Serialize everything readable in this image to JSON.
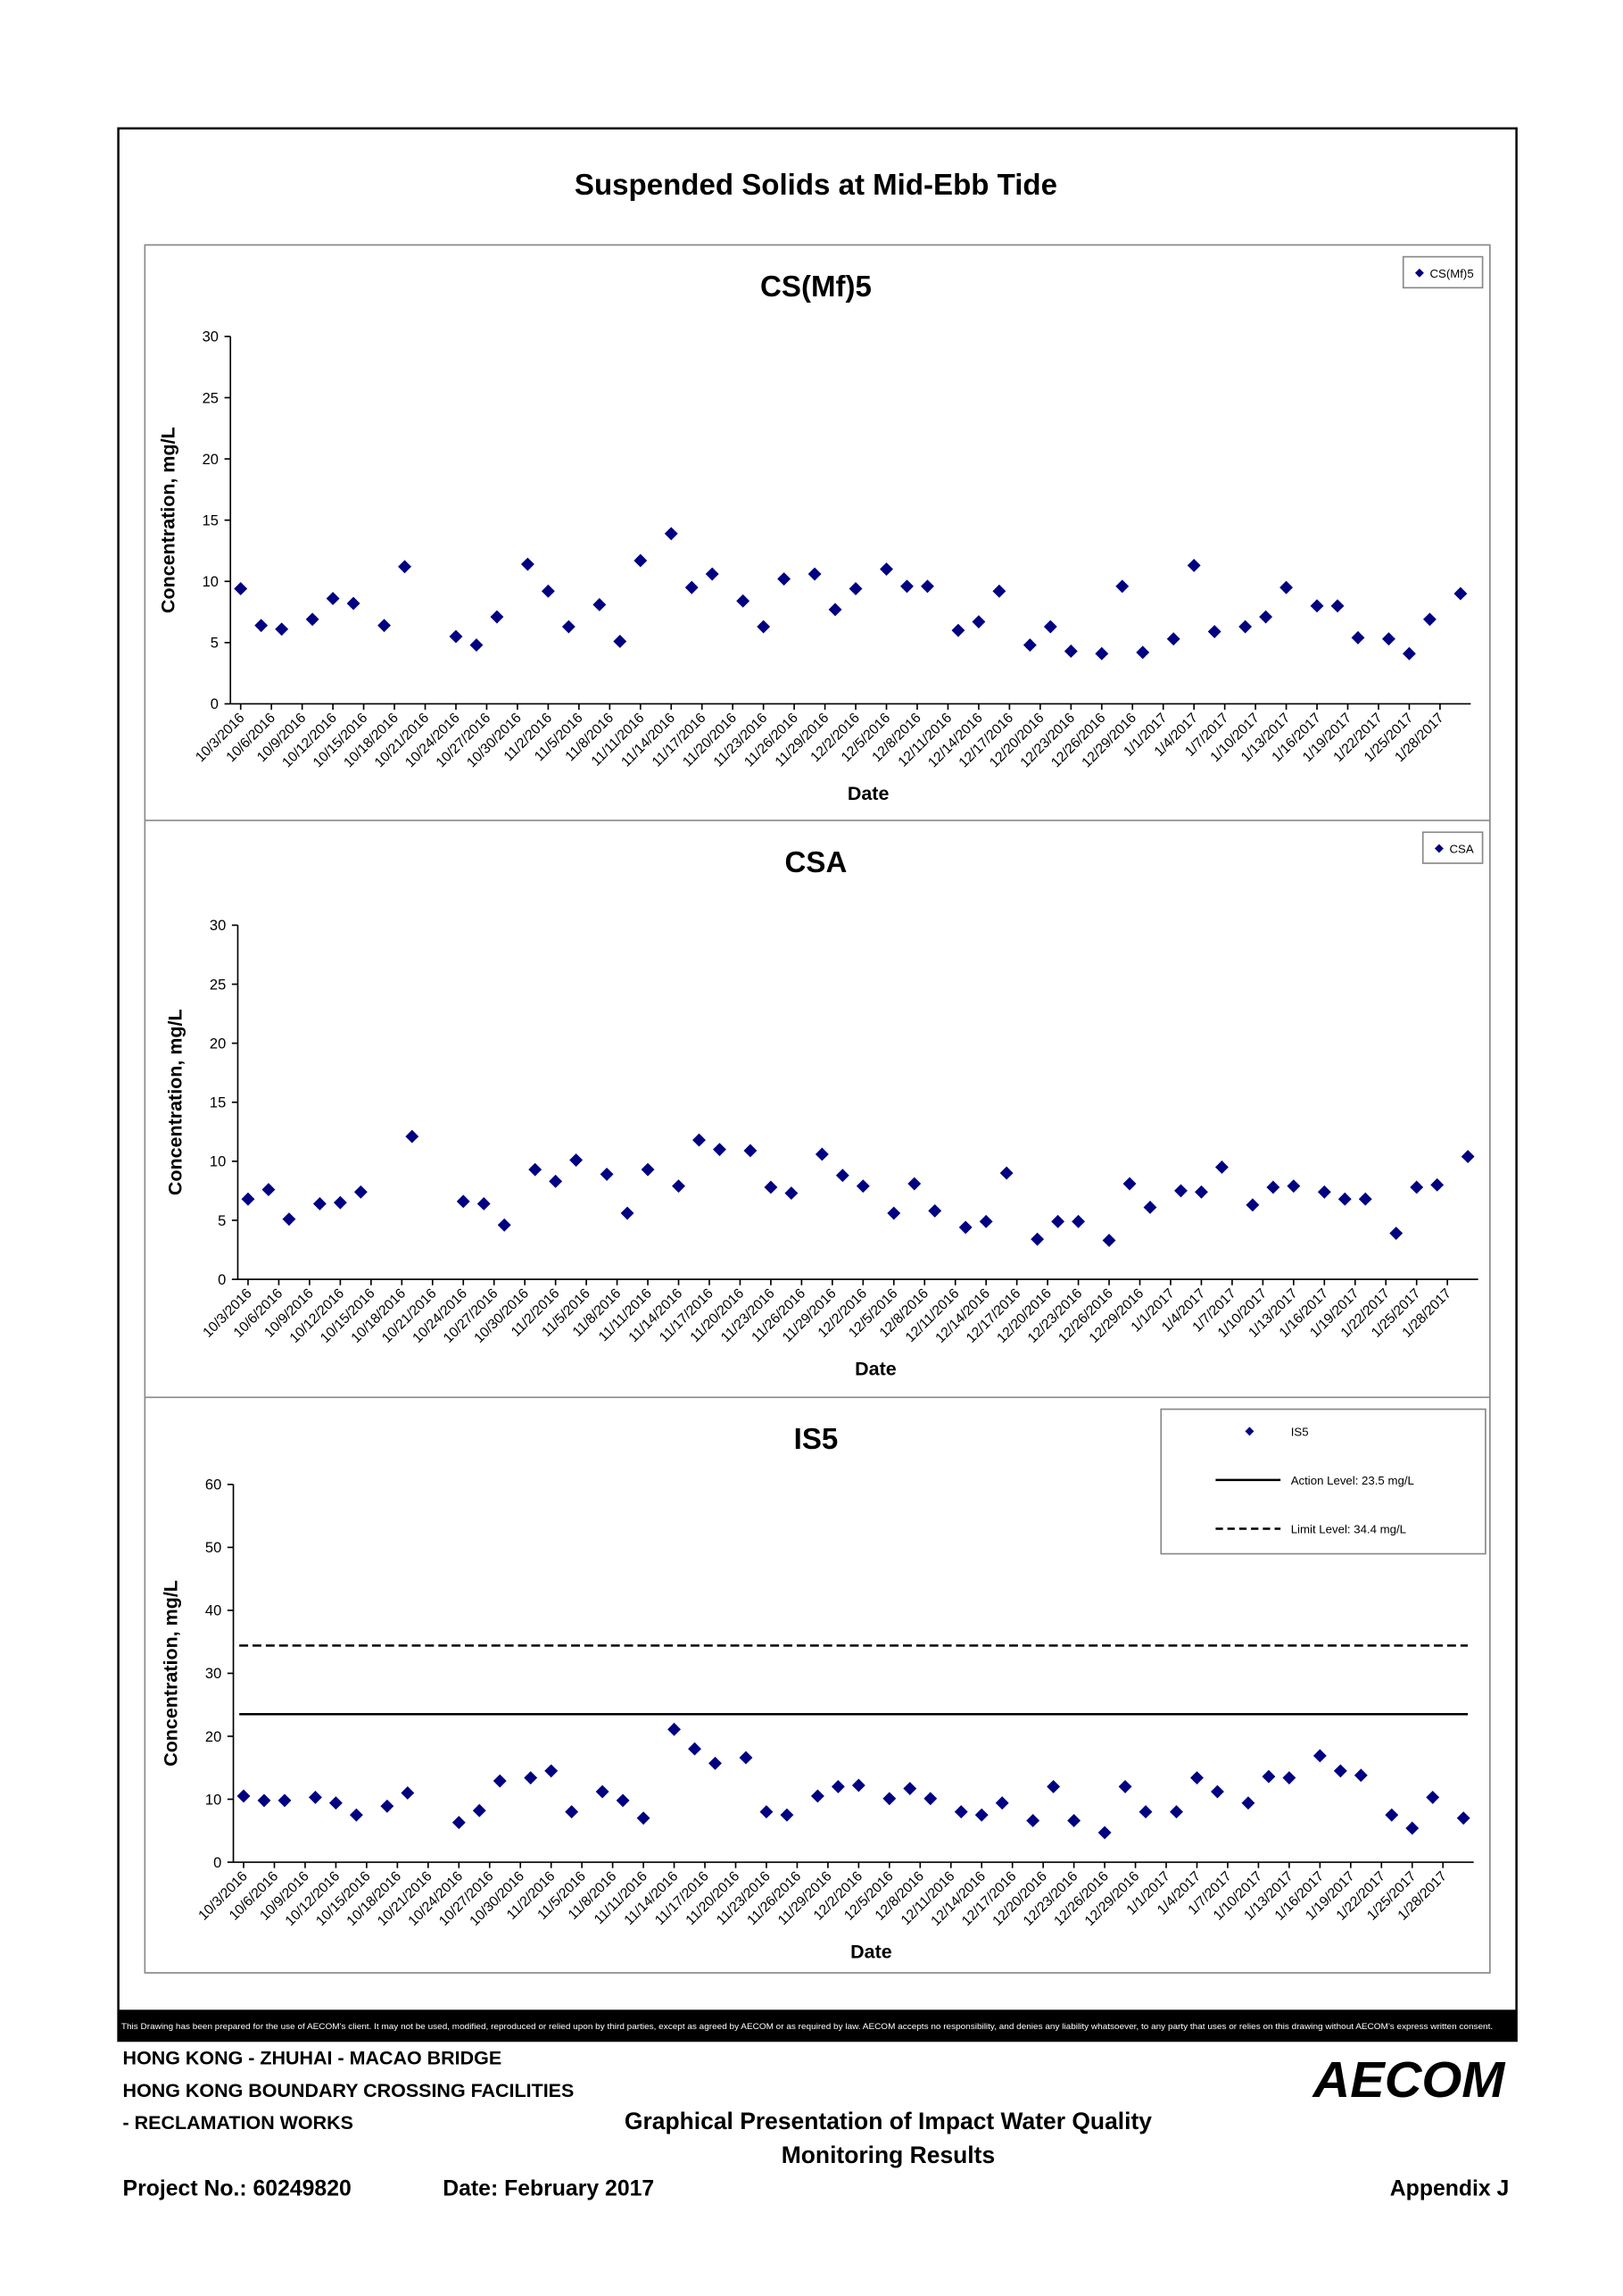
{
  "title": "Suspended Solids at Mid-Ebb Tide",
  "disclaimer": "This Drawing has been prepared for the use of AECOM's client. It may not be used, modified, reproduced or relied upon by third parties, except as agreed by AECOM or as required by law. AECOM accepts no responsibility, and denies any liability whatsoever, to any party that uses or relies on this drawing without AECOM's express written consent.",
  "footer": {
    "project_lines": [
      "HONG KONG - ZHUHAI - MACAO BRIDGE",
      "HONG KONG BOUNDARY CROSSING FACILITIES",
      "- RECLAMATION WORKS"
    ],
    "drawing_title": [
      "Graphical Presentation of Impact Water Quality",
      "Monitoring Results"
    ],
    "project_no": "Project No.: 60249820",
    "date": "Date: February 2017",
    "appendix": "Appendix J",
    "logo": "AECOM"
  },
  "chart_data": [
    {
      "type": "scatter",
      "title": "CS(Mf)5",
      "xlabel": "Date",
      "ylabel": "Concentration, mg/L",
      "legend": "upper right",
      "grid": false,
      "xlim": [
        "10/2/2016",
        "1/31/2017"
      ],
      "ylim": [
        0,
        30
      ],
      "yticks": [
        0,
        5,
        10,
        15,
        20,
        25,
        30
      ],
      "xticks": [
        "10/3/2016",
        "10/6/2016",
        "10/9/2016",
        "10/12/2016",
        "10/15/2016",
        "10/18/2016",
        "10/21/2016",
        "10/24/2016",
        "10/27/2016",
        "10/30/2016",
        "11/2/2016",
        "11/5/2016",
        "11/8/2016",
        "11/11/2016",
        "11/14/2016",
        "11/17/2016",
        "11/20/2016",
        "11/23/2016",
        "11/26/2016",
        "11/29/2016",
        "12/2/2016",
        "12/5/2016",
        "12/8/2016",
        "12/11/2016",
        "12/14/2016",
        "12/17/2016",
        "12/20/2016",
        "12/23/2016",
        "12/26/2016",
        "12/29/2016",
        "1/1/2017",
        "1/4/2017",
        "1/7/2017",
        "1/10/2017",
        "1/13/2017",
        "1/16/2017",
        "1/19/2017",
        "1/22/2017",
        "1/25/2017",
        "1/28/2017"
      ],
      "x": [
        "10/3/2016",
        "10/5/2016",
        "10/7/2016",
        "10/10/2016",
        "10/12/2016",
        "10/14/2016",
        "10/17/2016",
        "10/19/2016",
        "10/24/2016",
        "10/26/2016",
        "10/28/2016",
        "10/31/2016",
        "11/2/2016",
        "11/4/2016",
        "11/7/2016",
        "11/9/2016",
        "11/11/2016",
        "11/14/2016",
        "11/16/2016",
        "11/18/2016",
        "11/21/2016",
        "11/23/2016",
        "11/25/2016",
        "11/28/2016",
        "11/30/2016",
        "12/2/2016",
        "12/5/2016",
        "12/7/2016",
        "12/9/2016",
        "12/12/2016",
        "12/14/2016",
        "12/16/2016",
        "12/19/2016",
        "12/21/2016",
        "12/23/2016",
        "12/26/2016",
        "12/28/2016",
        "12/30/2016",
        "1/2/2017",
        "1/4/2017",
        "1/6/2017",
        "1/9/2017",
        "1/11/2017",
        "1/13/2017",
        "1/16/2017",
        "1/18/2017",
        "1/20/2017",
        "1/23/2017",
        "1/25/2017",
        "1/27/2017",
        "1/30/2017"
      ],
      "series": [
        {
          "name": "CS(Mf)5",
          "color": "#000080",
          "values": [
            9.4,
            6.4,
            6.1,
            6.9,
            8.6,
            8.2,
            6.4,
            11.2,
            5.5,
            4.8,
            7.1,
            11.4,
            9.2,
            6.3,
            8.1,
            5.1,
            11.7,
            13.9,
            9.5,
            10.6,
            8.4,
            6.3,
            10.2,
            10.6,
            7.7,
            9.4,
            11.0,
            9.6,
            9.6,
            6.0,
            6.7,
            9.2,
            4.8,
            6.3,
            4.3,
            4.1,
            9.6,
            4.2,
            5.3,
            11.3,
            5.9,
            6.3,
            7.1,
            9.5,
            8.0,
            8.0,
            5.4,
            5.3,
            4.1,
            6.9,
            9.0
          ]
        }
      ]
    },
    {
      "type": "scatter",
      "title": "CSA",
      "xlabel": "Date",
      "ylabel": "Concentration, mg/L",
      "legend": "upper right",
      "grid": false,
      "xlim": [
        "10/2/2016",
        "1/31/2017"
      ],
      "ylim": [
        0,
        30
      ],
      "yticks": [
        0,
        5,
        10,
        15,
        20,
        25,
        30
      ],
      "xticks": [
        "10/3/2016",
        "10/6/2016",
        "10/9/2016",
        "10/12/2016",
        "10/15/2016",
        "10/18/2016",
        "10/21/2016",
        "10/24/2016",
        "10/27/2016",
        "10/30/2016",
        "11/2/2016",
        "11/5/2016",
        "11/8/2016",
        "11/11/2016",
        "11/14/2016",
        "11/17/2016",
        "11/20/2016",
        "11/23/2016",
        "11/26/2016",
        "11/29/2016",
        "12/2/2016",
        "12/5/2016",
        "12/8/2016",
        "12/11/2016",
        "12/14/2016",
        "12/17/2016",
        "12/20/2016",
        "12/23/2016",
        "12/26/2016",
        "12/29/2016",
        "1/1/2017",
        "1/4/2017",
        "1/7/2017",
        "1/10/2017",
        "1/13/2017",
        "1/16/2017",
        "1/19/2017",
        "1/22/2017",
        "1/25/2017",
        "1/28/2017"
      ],
      "x": [
        "10/3/2016",
        "10/5/2016",
        "10/7/2016",
        "10/10/2016",
        "10/12/2016",
        "10/14/2016",
        "10/19/2016",
        "10/24/2016",
        "10/26/2016",
        "10/28/2016",
        "10/31/2016",
        "11/2/2016",
        "11/4/2016",
        "11/7/2016",
        "11/9/2016",
        "11/11/2016",
        "11/14/2016",
        "11/16/2016",
        "11/18/2016",
        "11/21/2016",
        "11/23/2016",
        "11/25/2016",
        "11/28/2016",
        "11/30/2016",
        "12/2/2016",
        "12/5/2016",
        "12/7/2016",
        "12/9/2016",
        "12/12/2016",
        "12/14/2016",
        "12/16/2016",
        "12/19/2016",
        "12/21/2016",
        "12/23/2016",
        "12/26/2016",
        "12/28/2016",
        "12/30/2016",
        "1/2/2017",
        "1/4/2017",
        "1/6/2017",
        "1/9/2017",
        "1/11/2017",
        "1/13/2017",
        "1/16/2017",
        "1/18/2017",
        "1/20/2017",
        "1/23/2017",
        "1/25/2017",
        "1/27/2017",
        "1/30/2017"
      ],
      "series": [
        {
          "name": "CSA",
          "color": "#000080",
          "values": [
            6.8,
            7.6,
            5.1,
            6.4,
            6.5,
            7.4,
            12.1,
            6.6,
            6.4,
            4.6,
            9.3,
            8.3,
            10.1,
            8.9,
            5.6,
            9.3,
            7.9,
            11.8,
            11.0,
            10.9,
            7.8,
            7.3,
            10.6,
            8.8,
            7.9,
            5.6,
            8.1,
            5.8,
            4.4,
            4.9,
            9.0,
            3.4,
            4.9,
            4.9,
            3.3,
            8.1,
            6.1,
            7.5,
            7.4,
            9.5,
            6.3,
            7.8,
            7.9,
            7.4,
            6.8,
            6.8,
            3.9,
            7.8,
            8.0,
            10.4
          ]
        }
      ]
    },
    {
      "type": "scatter",
      "title": "IS5",
      "xlabel": "Date",
      "ylabel": "Concentration, mg/L",
      "legend": "upper right",
      "grid": false,
      "xlim": [
        "10/2/2016",
        "1/31/2017"
      ],
      "ylim": [
        0,
        60
      ],
      "yticks": [
        0,
        10,
        20,
        30,
        40,
        50,
        60
      ],
      "xticks": [
        "10/3/2016",
        "10/6/2016",
        "10/9/2016",
        "10/12/2016",
        "10/15/2016",
        "10/18/2016",
        "10/21/2016",
        "10/24/2016",
        "10/27/2016",
        "10/30/2016",
        "11/2/2016",
        "11/5/2016",
        "11/8/2016",
        "11/11/2016",
        "11/14/2016",
        "11/17/2016",
        "11/20/2016",
        "11/23/2016",
        "11/26/2016",
        "11/29/2016",
        "12/2/2016",
        "12/5/2016",
        "12/8/2016",
        "12/11/2016",
        "12/14/2016",
        "12/17/2016",
        "12/20/2016",
        "12/23/2016",
        "12/26/2016",
        "12/29/2016",
        "1/1/2017",
        "1/4/2017",
        "1/7/2017",
        "1/10/2017",
        "1/13/2017",
        "1/16/2017",
        "1/19/2017",
        "1/22/2017",
        "1/25/2017",
        "1/28/2017"
      ],
      "x": [
        "10/3/2016",
        "10/5/2016",
        "10/7/2016",
        "10/10/2016",
        "10/12/2016",
        "10/14/2016",
        "10/17/2016",
        "10/19/2016",
        "10/24/2016",
        "10/26/2016",
        "10/28/2016",
        "10/31/2016",
        "11/2/2016",
        "11/4/2016",
        "11/7/2016",
        "11/9/2016",
        "11/11/2016",
        "11/14/2016",
        "11/16/2016",
        "11/18/2016",
        "11/21/2016",
        "11/23/2016",
        "11/25/2016",
        "11/28/2016",
        "11/30/2016",
        "12/2/2016",
        "12/5/2016",
        "12/7/2016",
        "12/9/2016",
        "12/12/2016",
        "12/14/2016",
        "12/16/2016",
        "12/19/2016",
        "12/21/2016",
        "12/23/2016",
        "12/26/2016",
        "12/28/2016",
        "12/30/2016",
        "1/2/2017",
        "1/4/2017",
        "1/6/2017",
        "1/9/2017",
        "1/11/2017",
        "1/13/2017",
        "1/16/2017",
        "1/18/2017",
        "1/20/2017",
        "1/23/2017",
        "1/25/2017",
        "1/27/2017",
        "1/30/2017"
      ],
      "series": [
        {
          "name": "IS5",
          "color": "#000080",
          "values": [
            10.5,
            9.8,
            9.8,
            10.3,
            9.4,
            7.5,
            8.9,
            11.0,
            6.3,
            8.2,
            12.9,
            13.4,
            14.5,
            8.0,
            11.2,
            9.8,
            7.0,
            21.1,
            18.0,
            15.7,
            16.6,
            8.0,
            7.5,
            10.5,
            12.0,
            12.2,
            10.1,
            11.7,
            10.1,
            8.0,
            7.5,
            9.4,
            6.6,
            12.0,
            6.6,
            4.7,
            12.0,
            8.0,
            8.0,
            13.4,
            11.2,
            9.4,
            13.6,
            13.4,
            16.9,
            14.5,
            13.8,
            7.5,
            5.4,
            10.3,
            7.0
          ]
        }
      ],
      "lines": [
        {
          "name": "Action Level: 23.5 mg/L",
          "value": 23.5,
          "style": "solid",
          "color": "#000000"
        },
        {
          "name": "Limit Level: 34.4 mg/L",
          "value": 34.4,
          "style": "dashed",
          "color": "#000000"
        }
      ]
    }
  ]
}
